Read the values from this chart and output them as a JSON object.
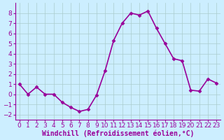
{
  "x": [
    0,
    1,
    2,
    3,
    4,
    5,
    6,
    7,
    8,
    9,
    10,
    11,
    12,
    13,
    14,
    15,
    16,
    17,
    18,
    19,
    20,
    21,
    22,
    23
  ],
  "y": [
    1.0,
    0.0,
    0.7,
    0.0,
    0.0,
    -0.8,
    -1.3,
    -1.7,
    -1.5,
    -0.1,
    2.3,
    5.3,
    7.0,
    8.0,
    7.8,
    8.2,
    6.5,
    5.0,
    3.5,
    3.3,
    0.4,
    0.3,
    1.5,
    1.1
  ],
  "line_color": "#990099",
  "marker": "D",
  "markersize": 2.5,
  "linewidth": 1.2,
  "bg_color": "#cceeff",
  "grid_color": "#aacccc",
  "xlabel": "Windchill (Refroidissement éolien,°C)",
  "xlabel_fontsize": 7,
  "tick_fontsize": 6.5,
  "xlim": [
    -0.5,
    23.5
  ],
  "ylim": [
    -2.5,
    9.0
  ],
  "yticks": [
    -2,
    -1,
    0,
    1,
    2,
    3,
    4,
    5,
    6,
    7,
    8
  ],
  "xticks": [
    0,
    1,
    2,
    3,
    4,
    5,
    6,
    7,
    8,
    9,
    10,
    11,
    12,
    13,
    14,
    15,
    16,
    17,
    18,
    19,
    20,
    21,
    22,
    23
  ]
}
